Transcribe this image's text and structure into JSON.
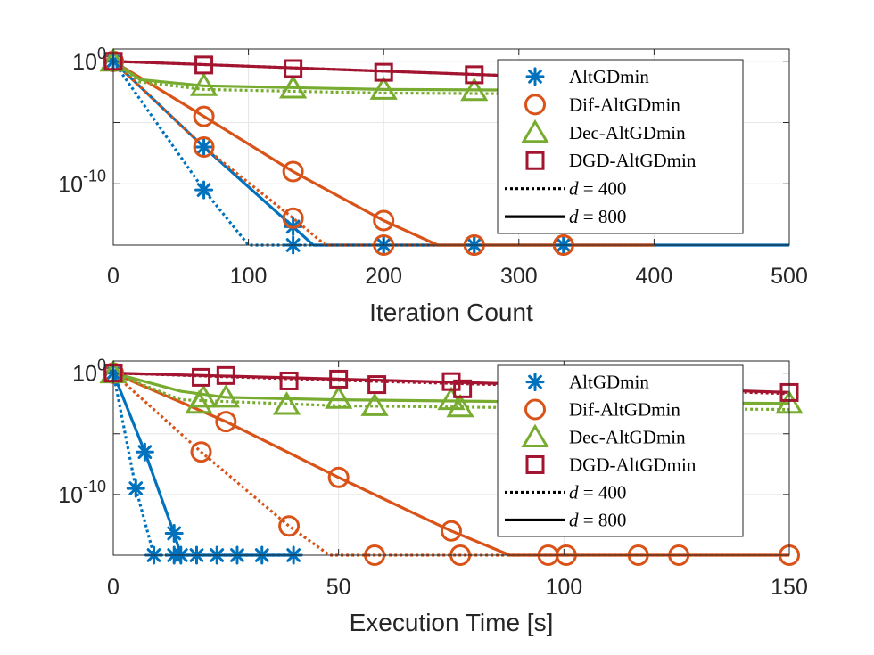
{
  "colors": {
    "AltGDmin": "#0072BD",
    "Dif-AltGDmin": "#D95319",
    "Dec-AltGDmin": "#77AC30",
    "DGD-AltGDmin": "#A2142F"
  },
  "chart_data": [
    {
      "type": "line",
      "xlabel": "Iteration Count",
      "ylabel": "",
      "xlim": [
        0,
        500
      ],
      "y_scale": "log",
      "ylim_log10": [
        -15,
        1
      ],
      "xticks": [
        "0",
        "100",
        "200",
        "300",
        "400",
        "500"
      ],
      "yticks": [
        {
          "base": "10",
          "exp": "0",
          "log10": 0
        },
        {
          "base": "10",
          "exp": "-10",
          "log10": -10
        }
      ],
      "grid": true,
      "legend_position": "top-right",
      "legend": {
        "methods": [
          {
            "name": "AltGDmin",
            "marker": "asterisk"
          },
          {
            "name": "Dif-AltGDmin",
            "marker": "circle"
          },
          {
            "name": "Dec-AltGDmin",
            "marker": "triangle"
          },
          {
            "name": "DGD-AltGDmin",
            "marker": "square"
          }
        ],
        "styles": [
          {
            "var": "d",
            "eq": " = ",
            "val": "400",
            "line": "dotted"
          },
          {
            "var": "d",
            "eq": " = ",
            "val": "800",
            "line": "solid"
          }
        ]
      },
      "series": [
        {
          "name": "AltGDmin",
          "d": "800",
          "line": "solid",
          "x": [
            0,
            67,
            133,
            148,
            200,
            500
          ],
          "log10_y": [
            0,
            -7,
            -13.5,
            -15,
            -15,
            -15
          ],
          "markers_x": [
            0,
            67,
            133,
            200,
            267,
            333
          ],
          "markers_log10_y": [
            0,
            -7,
            -13.5,
            -15,
            -15,
            -15
          ]
        },
        {
          "name": "AltGDmin",
          "d": "400",
          "line": "dotted",
          "x": [
            0,
            67,
            100,
            400
          ],
          "log10_y": [
            0,
            -10.5,
            -15,
            -15
          ],
          "markers_x": [
            0,
            67,
            133,
            200,
            267,
            333
          ],
          "markers_log10_y": [
            0,
            -10.5,
            -15,
            -15,
            -15,
            -15
          ]
        },
        {
          "name": "Dif-AltGDmin",
          "d": "800",
          "line": "solid",
          "x": [
            0,
            67,
            133,
            200,
            240,
            400
          ],
          "log10_y": [
            0,
            -4.5,
            -9,
            -13,
            -15,
            -15
          ],
          "markers_x": [
            0,
            67,
            133,
            200,
            267,
            333
          ],
          "markers_log10_y": [
            0,
            -4.5,
            -9,
            -13,
            -15,
            -15
          ]
        },
        {
          "name": "Dif-AltGDmin",
          "d": "400",
          "line": "dotted",
          "x": [
            0,
            67,
            133,
            157,
            400
          ],
          "log10_y": [
            0,
            -7,
            -12.8,
            -15,
            -15
          ],
          "markers_x": [
            0,
            67,
            133,
            200,
            267,
            333
          ],
          "markers_log10_y": [
            0,
            -7,
            -12.8,
            -15,
            -15,
            -15
          ]
        },
        {
          "name": "Dec-AltGDmin",
          "d": "800",
          "line": "solid",
          "x": [
            0,
            20,
            67,
            200,
            400
          ],
          "log10_y": [
            0,
            -1.5,
            -2.0,
            -2.3,
            -2.4
          ],
          "markers_x": [
            0,
            67,
            133,
            200,
            267
          ],
          "markers_log10_y": [
            0,
            -2.0,
            -2.2,
            -2.3,
            -2.4
          ]
        },
        {
          "name": "Dec-AltGDmin",
          "d": "400",
          "line": "dotted",
          "x": [
            0,
            20,
            67,
            200,
            400
          ],
          "log10_y": [
            0,
            -1.7,
            -2.3,
            -2.6,
            -2.7
          ],
          "markers_x": [],
          "markers_log10_y": []
        },
        {
          "name": "DGD-AltGDmin",
          "d": "800",
          "line": "solid",
          "x": [
            0,
            100,
            200,
            300,
            400
          ],
          "log10_y": [
            0,
            -0.4,
            -0.8,
            -1.2,
            -1.5
          ],
          "markers_x": [
            0,
            67,
            133,
            200,
            267
          ],
          "markers_log10_y": [
            0,
            -0.3,
            -0.6,
            -0.9,
            -1.1
          ]
        },
        {
          "name": "DGD-AltGDmin",
          "d": "400",
          "line": "dotted",
          "x": [
            0,
            100,
            200,
            300,
            400
          ],
          "log10_y": [
            0,
            -0.4,
            -0.8,
            -1.2,
            -1.5
          ],
          "markers_x": [],
          "markers_log10_y": []
        }
      ]
    },
    {
      "type": "line",
      "xlabel": "Execution Time [s]",
      "ylabel": "",
      "xlim": [
        0,
        150
      ],
      "y_scale": "log",
      "ylim_log10": [
        -15,
        1
      ],
      "xticks": [
        "0",
        "50",
        "100",
        "150"
      ],
      "yticks": [
        {
          "base": "10",
          "exp": "0",
          "log10": 0
        },
        {
          "base": "10",
          "exp": "-10",
          "log10": -10
        }
      ],
      "grid": true,
      "legend_position": "top-right",
      "legend": {
        "methods": [
          {
            "name": "AltGDmin",
            "marker": "asterisk"
          },
          {
            "name": "Dif-AltGDmin",
            "marker": "circle"
          },
          {
            "name": "Dec-AltGDmin",
            "marker": "triangle"
          },
          {
            "name": "DGD-AltGDmin",
            "marker": "square"
          }
        ],
        "styles": [
          {
            "var": "d",
            "eq": " = ",
            "val": "400",
            "line": "dotted"
          },
          {
            "var": "d",
            "eq": " = ",
            "val": "800",
            "line": "solid"
          }
        ]
      },
      "series": [
        {
          "name": "AltGDmin",
          "d": "800",
          "line": "solid",
          "x": [
            0,
            7,
            13.5,
            15,
            40
          ],
          "log10_y": [
            0,
            -6.5,
            -13.2,
            -15,
            -15
          ],
          "markers_x": [
            0,
            7,
            13.5,
            15,
            18.5,
            23,
            27.5,
            33,
            40
          ],
          "markers_log10_y": [
            0,
            -6.5,
            -13.2,
            -15,
            -15,
            -15,
            -15,
            -15,
            -15
          ]
        },
        {
          "name": "AltGDmin",
          "d": "400",
          "line": "dotted",
          "x": [
            0,
            5,
            9,
            40
          ],
          "log10_y": [
            0,
            -9.5,
            -15,
            -15
          ],
          "markers_x": [
            0,
            5,
            9,
            13.5
          ],
          "markers_log10_y": [
            0,
            -9.5,
            -15,
            -15
          ]
        },
        {
          "name": "Dif-AltGDmin",
          "d": "800",
          "line": "solid",
          "x": [
            0,
            25,
            50,
            75,
            88,
            150
          ],
          "log10_y": [
            0,
            -4,
            -8.6,
            -13,
            -15,
            -15
          ],
          "markers_x": [
            0,
            25,
            50,
            75,
            77,
            96.5,
            100.5,
            116.5,
            125.5,
            150
          ],
          "markers_log10_y": [
            0,
            -4,
            -8.6,
            -13,
            -15,
            -15,
            -15,
            -15,
            -15,
            -15
          ]
        },
        {
          "name": "Dif-AltGDmin",
          "d": "400",
          "line": "dotted",
          "x": [
            0,
            19.5,
            39,
            48,
            150
          ],
          "log10_y": [
            0,
            -6.5,
            -12.6,
            -15,
            -15
          ],
          "markers_x": [
            0,
            19.5,
            39,
            58
          ],
          "markers_log10_y": [
            0,
            -6.5,
            -12.6,
            -15
          ]
        },
        {
          "name": "Dec-AltGDmin",
          "d": "800",
          "line": "solid",
          "x": [
            0,
            15,
            25,
            50,
            100,
            150
          ],
          "log10_y": [
            0,
            -1.5,
            -2.0,
            -2.2,
            -2.4,
            -2.5
          ],
          "markers_x": [
            0,
            20,
            25,
            50,
            75,
            100,
            150
          ],
          "markers_log10_y": [
            0,
            -2.0,
            -2.0,
            -2.1,
            -2.2,
            -2.4,
            -2.5
          ]
        },
        {
          "name": "Dec-AltGDmin",
          "d": "400",
          "line": "dotted",
          "x": [
            0,
            15,
            50,
            100,
            150
          ],
          "log10_y": [
            0,
            -2.2,
            -2.7,
            -2.9,
            -3.0
          ],
          "markers_x": [
            19,
            38.5,
            58,
            77
          ],
          "markers_log10_y": [
            -2.5,
            -2.6,
            -2.7,
            -2.8
          ]
        },
        {
          "name": "DGD-AltGDmin",
          "d": "800",
          "line": "solid",
          "x": [
            0,
            50,
            100,
            150
          ],
          "log10_y": [
            0,
            -0.5,
            -1.0,
            -1.6
          ],
          "markers_x": [
            0,
            25,
            50,
            75,
            100,
            150
          ],
          "markers_log10_y": [
            0,
            -0.2,
            -0.5,
            -0.7,
            -1.0,
            -1.6
          ]
        },
        {
          "name": "DGD-AltGDmin",
          "d": "400",
          "line": "dotted",
          "x": [
            0,
            50,
            100,
            150
          ],
          "log10_y": [
            0,
            -0.6,
            -1.1,
            -1.7
          ],
          "markers_x": [
            19.5,
            39,
            58.5,
            77.5
          ],
          "markers_log10_y": [
            -0.35,
            -0.65,
            -0.95,
            -1.3
          ]
        }
      ]
    }
  ]
}
